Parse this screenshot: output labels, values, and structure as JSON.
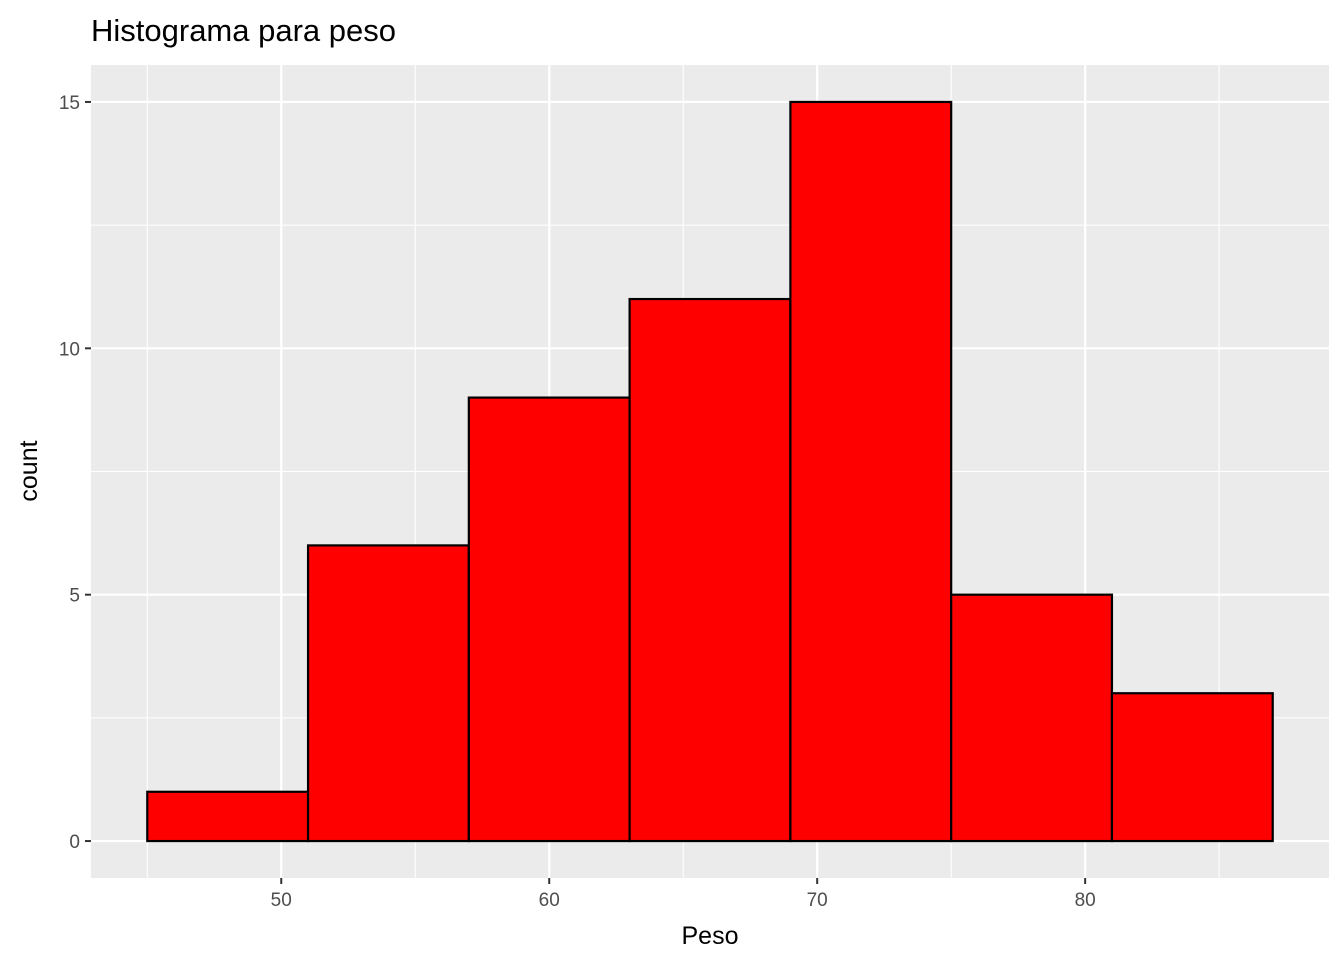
{
  "chart_data": {
    "type": "bar",
    "title": "Histograma para peso",
    "xlabel": "Peso",
    "ylabel": "count",
    "bin_edges": [
      45,
      51,
      57,
      63,
      69,
      75,
      81,
      87
    ],
    "values": [
      1,
      6,
      9,
      11,
      15,
      5,
      3
    ],
    "xlim": [
      42.9,
      89.1
    ],
    "ylim": [
      -0.75,
      15.75
    ],
    "x_ticks": [
      50,
      60,
      70,
      80
    ],
    "x_tick_labels": [
      "50",
      "60",
      "70",
      "80"
    ],
    "y_ticks": [
      0,
      5,
      10,
      15
    ],
    "y_tick_labels": [
      "0",
      "5",
      "10",
      "15"
    ],
    "grid": true,
    "legend": "none",
    "colors": {
      "bar_fill": "#ff0000",
      "bar_stroke": "#000000",
      "panel_background": "#ebebeb",
      "grid": "#ffffff"
    }
  }
}
